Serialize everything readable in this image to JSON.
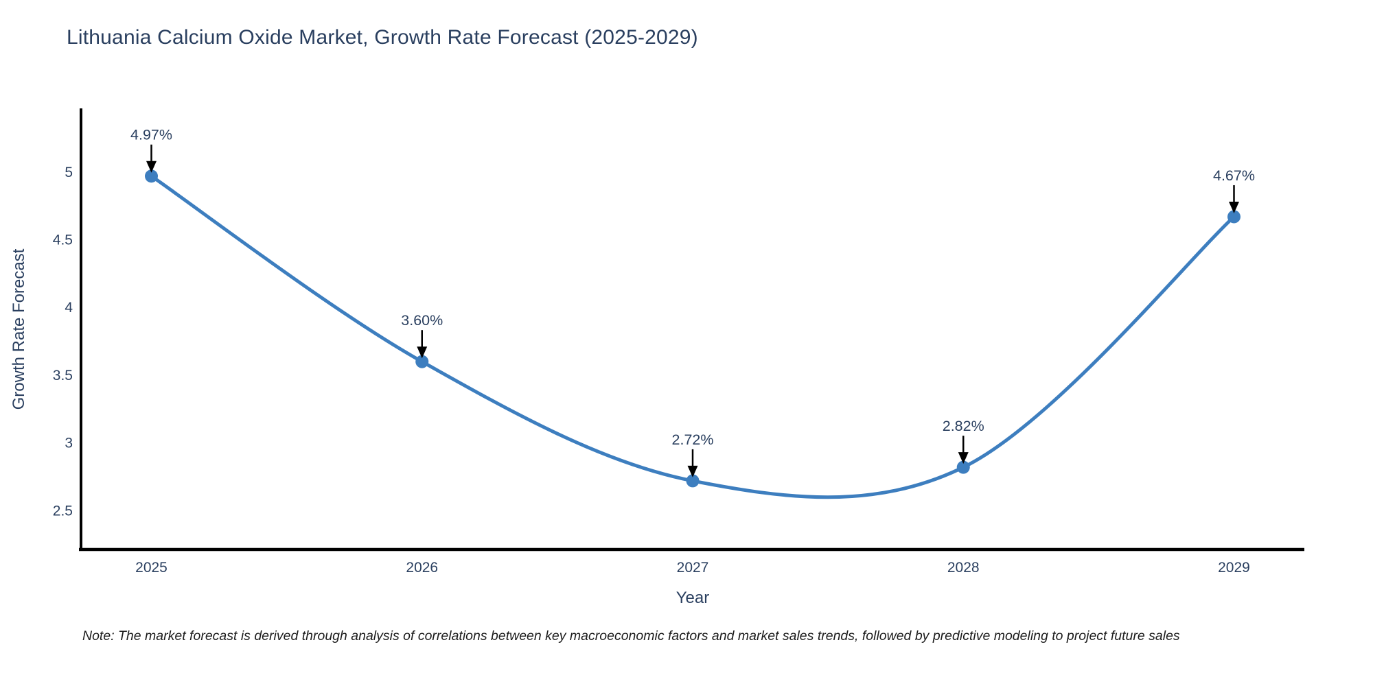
{
  "title": "Lithuania Calcium Oxide Market, Growth Rate Forecast (2025-2029)",
  "note": "Note: The market forecast is derived through analysis of correlations between key macroeconomic factors and market sales trends, followed by predictive modeling to project future sales",
  "chart_data": {
    "type": "line",
    "title": "Lithuania Calcium Oxide Market, Growth Rate Forecast (2025-2029)",
    "xlabel": "Year",
    "ylabel": "Growth Rate Forecast",
    "x": [
      2025,
      2026,
      2027,
      2028,
      2029
    ],
    "series": [
      {
        "name": "Growth Rate Forecast",
        "values": [
          4.97,
          3.6,
          2.72,
          2.82,
          4.67
        ],
        "point_labels": [
          "4.97%",
          "3.60%",
          "2.72%",
          "2.82%",
          "4.67%"
        ]
      }
    ],
    "x_tick_labels": [
      "2025",
      "2026",
      "2027",
      "2028",
      "2029"
    ],
    "y_tick_values": [
      2.5,
      3,
      3.5,
      4,
      4.5,
      5
    ],
    "y_tick_labels": [
      "2.5",
      "3",
      "3.5",
      "4",
      "4.5",
      "5"
    ],
    "xlim": [
      2024.74,
      2029.26
    ],
    "ylim": [
      2.213,
      5.46
    ],
    "line_shape": "spline",
    "grid": false,
    "legend_position": "none",
    "colors": {
      "line": "#3d7ebf",
      "marker": "#3d7ebf",
      "arrow": "#000000",
      "axis_line": "#000000",
      "tick_text": "#2a3f5f",
      "annotation_text": "#2a3f5f",
      "title_text": "#2a3f5f"
    }
  }
}
